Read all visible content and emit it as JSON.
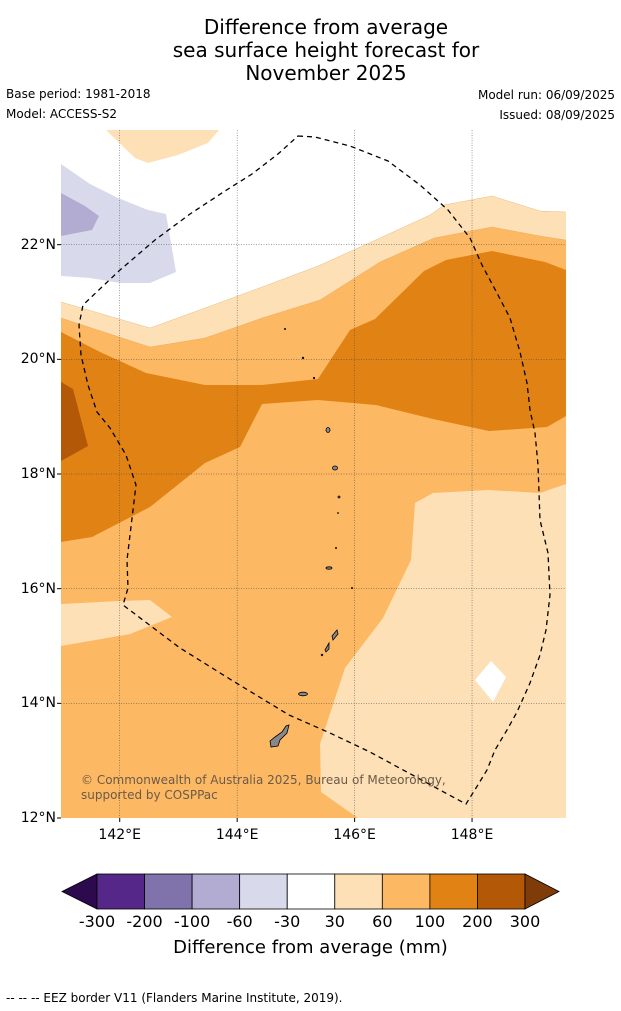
{
  "title": {
    "line1": "Difference from average",
    "line2": "sea surface height forecast for",
    "line3": "November 2025"
  },
  "meta": {
    "base_period": "Base period: 1981-2018",
    "model": "Model: ACCESS-S2",
    "model_run": "Model run: 06/09/2025",
    "issued": "Issued: 08/09/2025"
  },
  "map": {
    "lon_range": [
      141.0,
      149.6
    ],
    "lat_range": [
      12.0,
      24.0
    ],
    "lat_ticks": [
      {
        "value": 12,
        "label": "12°N"
      },
      {
        "value": 14,
        "label": "14°N"
      },
      {
        "value": 16,
        "label": "16°N"
      },
      {
        "value": 18,
        "label": "18°N"
      },
      {
        "value": 20,
        "label": "20°N"
      },
      {
        "value": 22,
        "label": "22°N"
      }
    ],
    "lon_ticks": [
      {
        "value": 142,
        "label": "142°E"
      },
      {
        "value": 144,
        "label": "144°E"
      },
      {
        "value": 146,
        "label": "146°E"
      },
      {
        "value": 148,
        "label": "148°E"
      }
    ],
    "grid": true,
    "copyright": "© Commonwealth of Australia 2025, Bureau of Meteorology, supported by COSPPac"
  },
  "legend": {
    "label": "Difference from average (mm)",
    "tick_labels": [
      "-300",
      "-200",
      "-100",
      "-60",
      "-30",
      "30",
      "60",
      "100",
      "200",
      "300"
    ],
    "colors": {
      "below_-300": "#2d0a4e",
      "-300_-200": "#542788",
      "-200_-100": "#8073ac",
      "-100_-60": "#b2abd2",
      "-60_-30": "#d8daeb",
      "-30_30": "#ffffff",
      "30_60": "#fee0b6",
      "60_100": "#fdb863",
      "100_200": "#e08214",
      "200_300": "#b35806",
      "above_300": "#7f3b08"
    }
  },
  "footer": "--  --  -- EEZ border V11 (Flanders Marine Institute, 2019)."
}
